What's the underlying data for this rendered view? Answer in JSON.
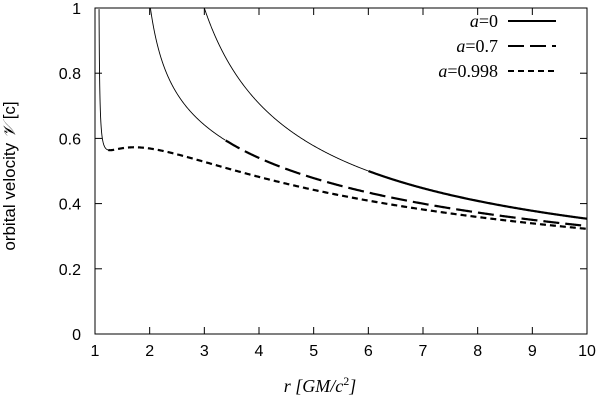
{
  "chart_data": {
    "type": "line",
    "xlabel_italic": "r",
    "xlabel_unit": "[GM/c",
    "xlabel_exp": "2",
    "xlabel_close": "]",
    "ylabel_text": "orbital velocity ",
    "ylabel_symbol": "𝒱",
    "ylabel_unit": " [c]",
    "xlim": [
      1,
      10
    ],
    "ylim": [
      0,
      1
    ],
    "xticks": [
      "1",
      "2",
      "3",
      "4",
      "5",
      "6",
      "7",
      "8",
      "9",
      "10"
    ],
    "yticks": [
      "0",
      "0.2",
      "0.4",
      "0.6",
      "0.8",
      "1"
    ],
    "grid": false,
    "legend_position": "top-right",
    "series": [
      {
        "name_var": "a",
        "name_val": "=0",
        "spin": 0,
        "stable_from_r": 6,
        "style": "solid",
        "color": "#000000"
      },
      {
        "name_var": "a",
        "name_val": "=0.7",
        "spin": 0.7,
        "stable_from_r": 3.39,
        "style": "long-dash",
        "color": "#000000"
      },
      {
        "name_var": "a",
        "name_val": "=0.998",
        "spin": 0.998,
        "stable_from_r": 1.24,
        "style": "short-dash",
        "color": "#000000"
      }
    ]
  }
}
